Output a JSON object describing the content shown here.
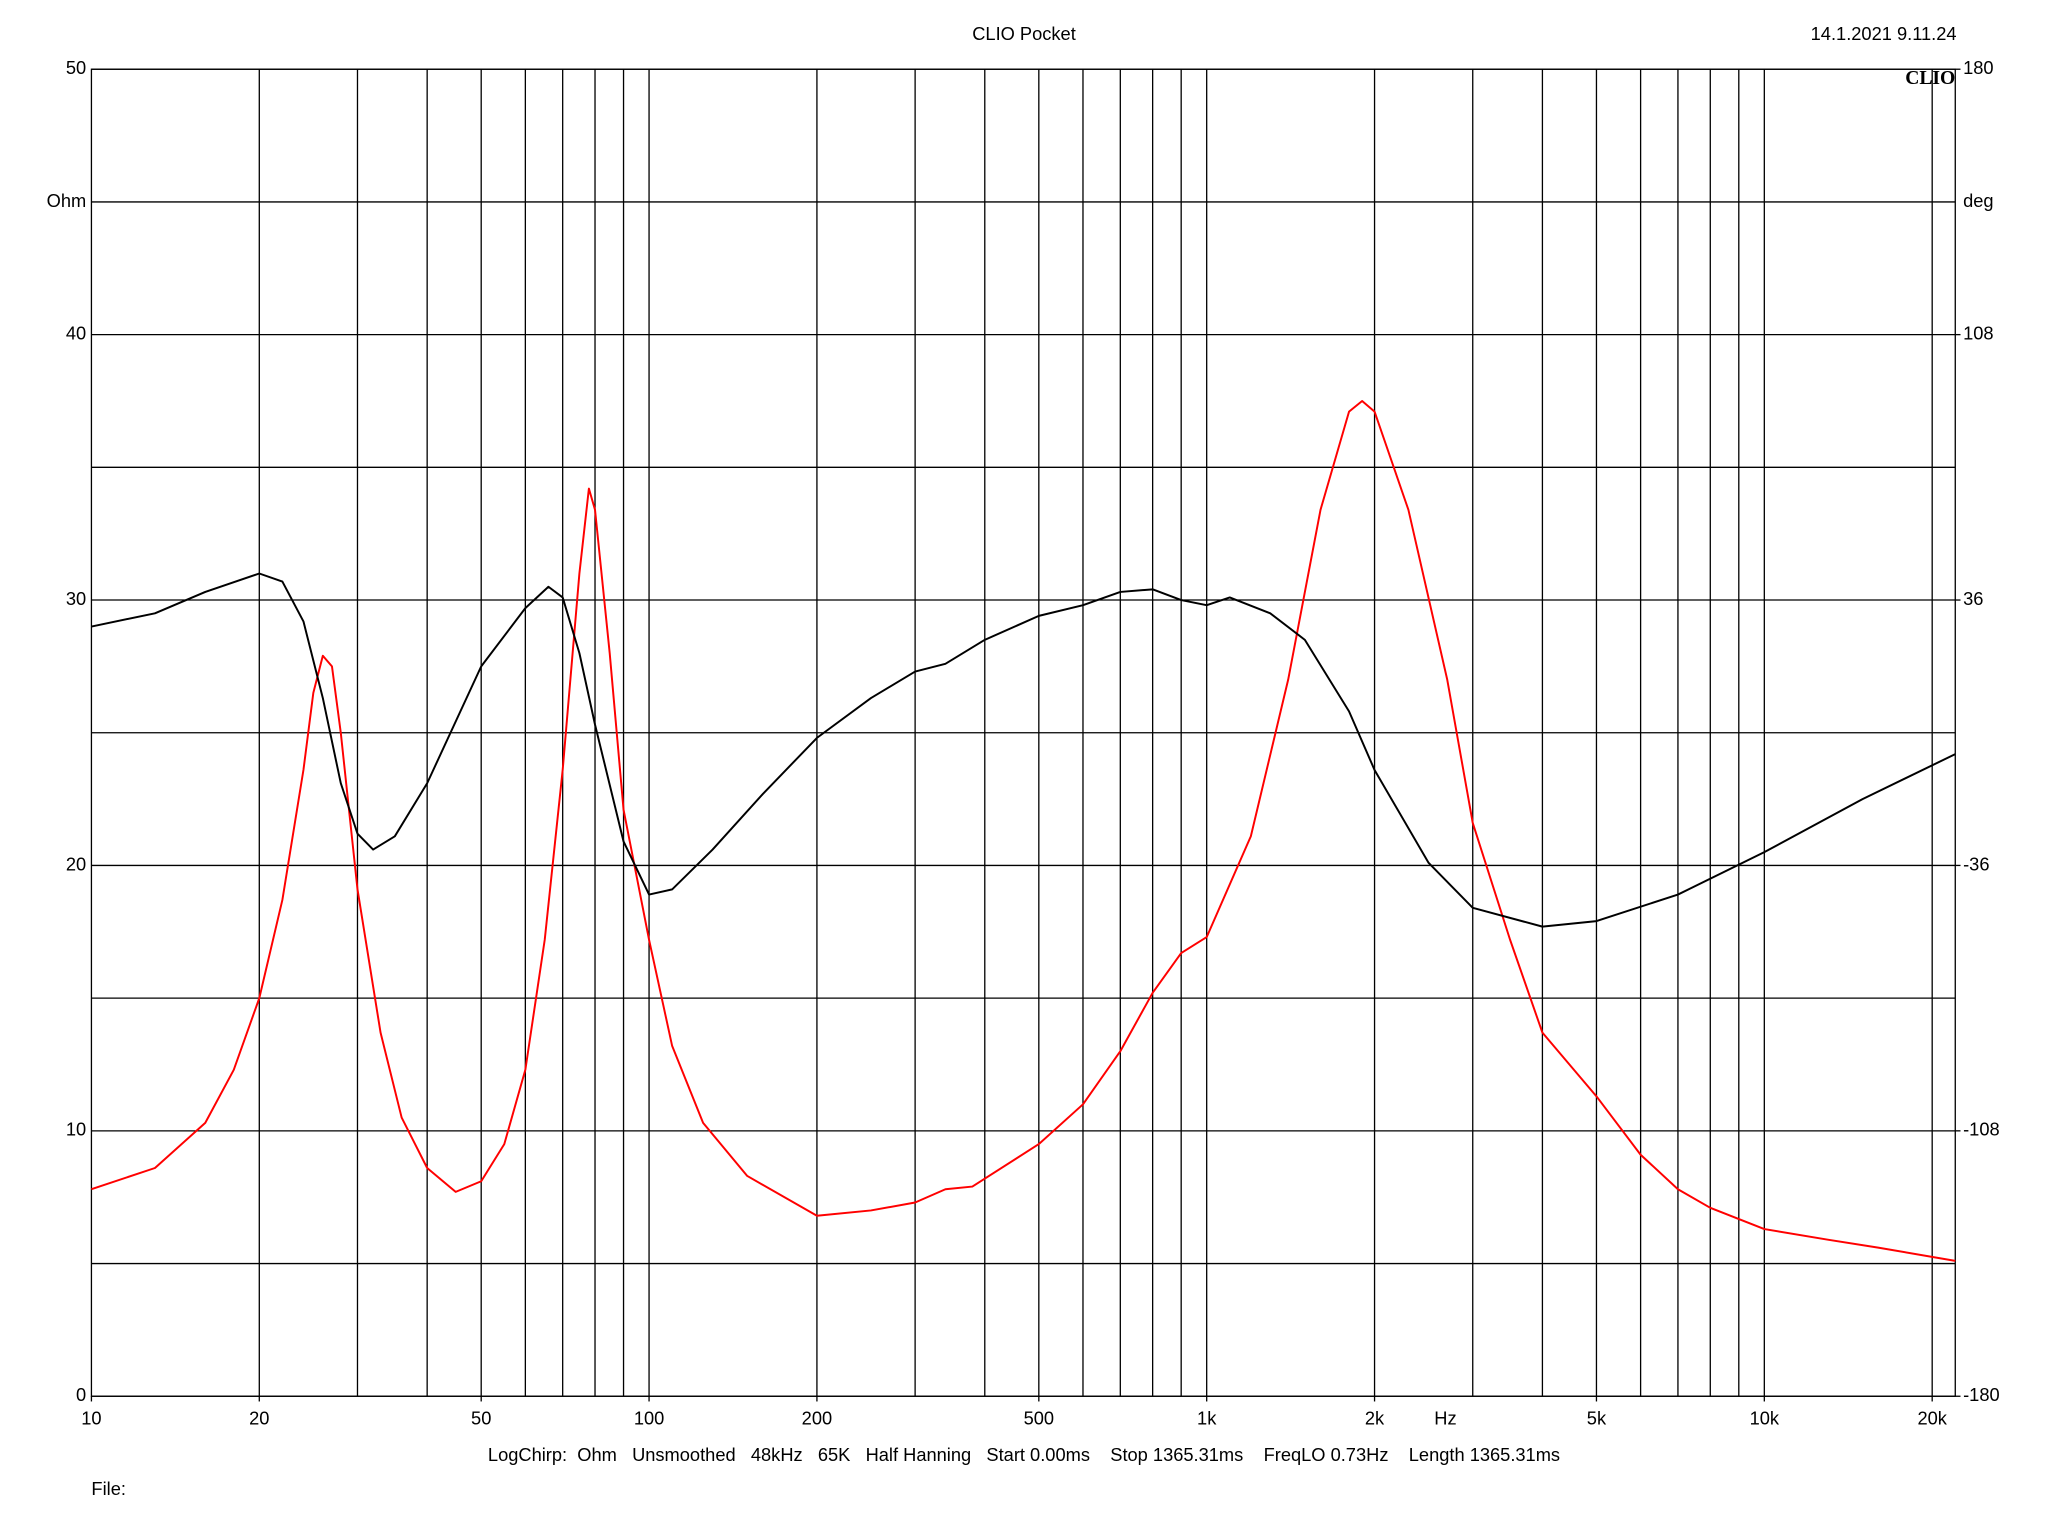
{
  "chart_data": {
    "type": "line",
    "title": "CLIO Pocket",
    "timestamp": "14.1.2021 9.11.24",
    "logo": "CLIO",
    "ylabel": "Ohm",
    "y2label": "deg",
    "xlabel": "Hz",
    "footer": "LogChirp:  Ohm   Unsmoothed   48kHz   65K   Half Hanning   Start 0.00ms    Stop 1365.31ms    FreqLO 0.73Hz    Length 1365.31ms",
    "file_label": "File:",
    "xlog": true,
    "grid": true,
    "xlim": [
      10,
      22000
    ],
    "xticks": [
      10,
      20,
      50,
      100,
      200,
      500,
      {
        "value": 1000,
        "label": "1k"
      },
      {
        "value": 2000,
        "label": "2k"
      },
      {
        "value": 5000,
        "label": "5k"
      },
      {
        "value": 10000,
        "label": "10k"
      },
      {
        "value": 20000,
        "label": "20k"
      }
    ],
    "xgrid": [
      20,
      30,
      40,
      50,
      60,
      70,
      80,
      90,
      100,
      200,
      300,
      400,
      500,
      600,
      700,
      800,
      900,
      1000,
      2000,
      3000,
      4000,
      5000,
      6000,
      7000,
      8000,
      9000,
      10000,
      20000
    ],
    "ylim": [
      0,
      50
    ],
    "yticks": [
      0,
      10,
      20,
      30,
      40,
      50
    ],
    "ygrid": [
      5,
      15,
      25,
      35,
      45
    ],
    "y2lim": [
      -180,
      180
    ],
    "y2ticks": [
      -180,
      -108,
      -36,
      36,
      108,
      180
    ],
    "series": [
      {
        "color": "#ff0000",
        "x": [
          10,
          13,
          16,
          18,
          20,
          22,
          24,
          25,
          26,
          27,
          28,
          30,
          33,
          36,
          40,
          45,
          50,
          55,
          60,
          65,
          70,
          75,
          78,
          80,
          85,
          90,
          100,
          110,
          125,
          150,
          200,
          250,
          300,
          340,
          380,
          500,
          600,
          700,
          800,
          900,
          1000,
          1200,
          1400,
          1600,
          1800,
          1900,
          2000,
          2300,
          2700,
          3000,
          3500,
          4000,
          5000,
          6000,
          7000,
          8000,
          10000,
          13000,
          16000,
          22000
        ],
        "values": [
          7.8,
          8.6,
          10.3,
          12.3,
          15,
          18.7,
          23.6,
          26.5,
          27.9,
          27.5,
          25,
          19.1,
          13.7,
          10.5,
          8.6,
          7.7,
          8.1,
          9.5,
          12.3,
          17.2,
          23.6,
          31,
          34.2,
          33.4,
          28,
          22.1,
          17.2,
          13.2,
          10.3,
          8.3,
          6.8,
          7.0,
          7.3,
          7.8,
          7.9,
          9.5,
          11,
          13,
          15.2,
          16.7,
          17.3,
          21.1,
          27,
          33.4,
          37.1,
          37.5,
          37.1,
          33.4,
          27,
          21.6,
          17.2,
          13.7,
          11.3,
          9.1,
          7.8,
          7.1,
          6.3,
          5.9,
          5.6,
          5.1
        ]
      },
      {
        "color": "#000000",
        "axis": "y2",
        "x": [
          10,
          13,
          16,
          20,
          22,
          24,
          26,
          28,
          30,
          32,
          35,
          40,
          50,
          60,
          66,
          70,
          75,
          80,
          90,
          100,
          110,
          130,
          160,
          200,
          250,
          300,
          340,
          400,
          500,
          600,
          700,
          800,
          900,
          1000,
          1100,
          1300,
          1500,
          1800,
          2000,
          2500,
          3000,
          4000,
          5000,
          7000,
          10000,
          15000,
          22000
        ],
        "values": [
          28.8,
          32.4,
          38.2,
          43.2,
          41,
          30.2,
          9.4,
          -13.7,
          -27.4,
          -31.7,
          -28.1,
          -13.7,
          18,
          33.8,
          39.6,
          36.7,
          21.6,
          2.2,
          -29.5,
          -43.9,
          -42.5,
          -31.7,
          -16.6,
          -1.4,
          9.4,
          16.6,
          18.7,
          25.2,
          31.7,
          34.6,
          38.2,
          38.9,
          36,
          34.6,
          36.7,
          32.4,
          25.2,
          5.8,
          -10.1,
          -35.3,
          -47.5,
          -52.6,
          -51.1,
          -43.9,
          -32.4,
          -18,
          -5.8
        ]
      }
    ]
  }
}
